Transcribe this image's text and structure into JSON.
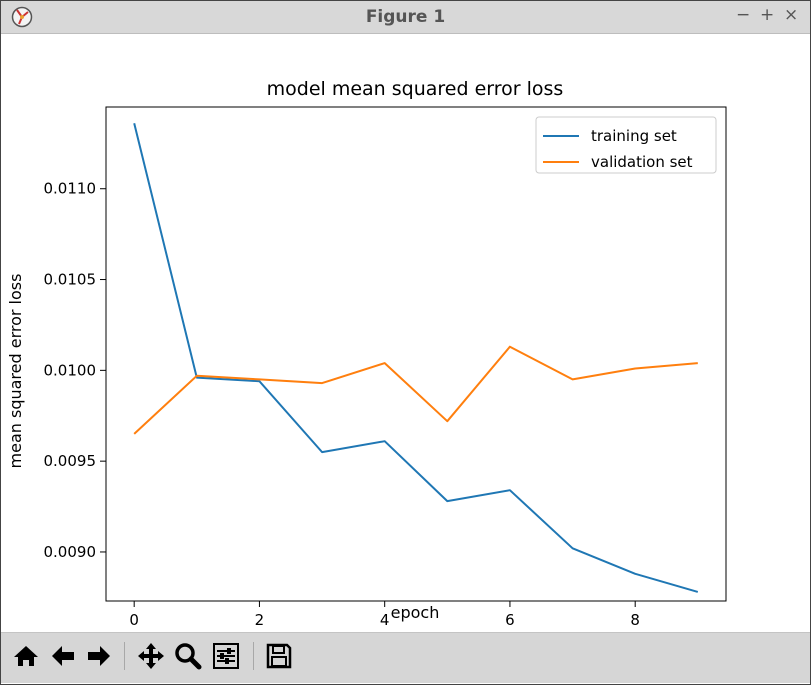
{
  "window": {
    "title": "Figure 1",
    "controls": [
      "−",
      "+",
      "×"
    ]
  },
  "toolbar": {
    "buttons": [
      {
        "name": "home-icon"
      },
      {
        "name": "back-arrow-icon"
      },
      {
        "name": "forward-arrow-icon"
      },
      {
        "name": "pan-icon"
      },
      {
        "name": "zoom-icon"
      },
      {
        "name": "configure-subplots-icon"
      },
      {
        "name": "save-icon"
      }
    ]
  },
  "chart_data": {
    "type": "line",
    "title": "model mean squared error loss",
    "xlabel": "epoch",
    "ylabel": "mean squared error loss",
    "x": [
      0,
      1,
      2,
      3,
      4,
      5,
      6,
      7,
      8,
      9
    ],
    "xticks": [
      "0",
      "2",
      "4",
      "6",
      "8"
    ],
    "yticks": [
      "0.0090",
      "0.0095",
      "0.0100",
      "0.0105",
      "0.0110"
    ],
    "xlim": [
      -0.45,
      9.45
    ],
    "ylim": [
      0.00873,
      0.01145
    ],
    "series": [
      {
        "name": "training set",
        "color": "#1f77b4",
        "values": [
          0.01136,
          0.00996,
          0.00994,
          0.00955,
          0.00961,
          0.00928,
          0.00934,
          0.00902,
          0.00888,
          0.00878
        ]
      },
      {
        "name": "validation set",
        "color": "#ff7f0e",
        "values": [
          0.00965,
          0.00997,
          0.00995,
          0.00993,
          0.01004,
          0.00972,
          0.01013,
          0.00995,
          0.01001,
          0.01004
        ]
      }
    ],
    "legend": "upper-right",
    "grid": false
  }
}
